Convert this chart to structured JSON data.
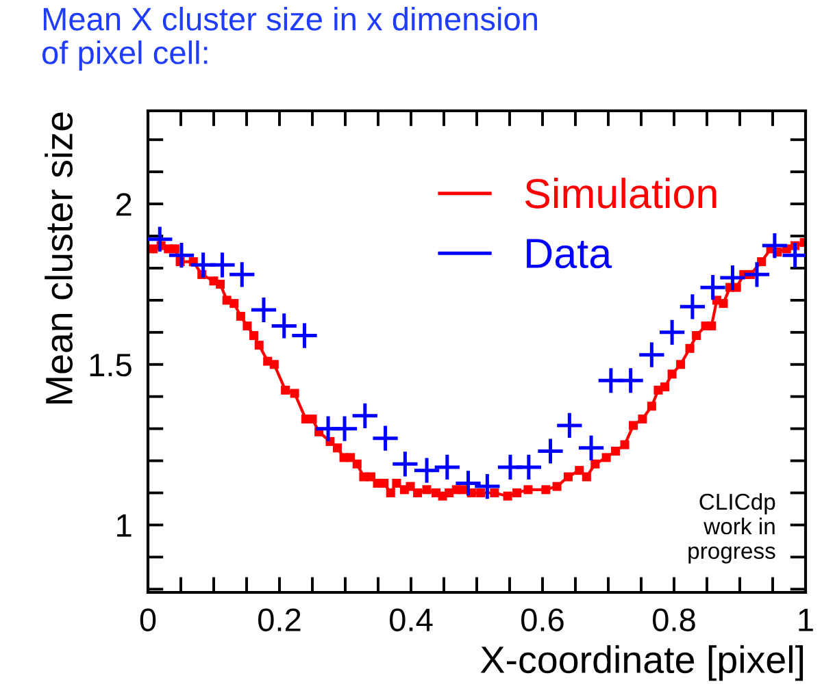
{
  "chart_data": {
    "type": "line",
    "title": "Mean X cluster size in x dimension\nof pixel cell:",
    "xlabel": "X-coordinate [pixel]",
    "ylabel": "Mean cluster size",
    "annotations": [
      "CLICdp\nwork in\nprogress"
    ],
    "xlim": [
      0,
      1
    ],
    "xticks": [
      0,
      {
        "value": 0.05,
        "label": null
      },
      {
        "value": 0.1,
        "label": null
      },
      {
        "value": 0.15,
        "label": null
      },
      0.2,
      {
        "value": 0.25,
        "label": null
      },
      {
        "value": 0.3,
        "label": null
      },
      {
        "value": 0.35,
        "label": null
      },
      0.4,
      {
        "value": 0.45,
        "label": null
      },
      {
        "value": 0.5,
        "label": null
      },
      {
        "value": 0.55,
        "label": null
      },
      0.6,
      {
        "value": 0.65,
        "label": null
      },
      {
        "value": 0.7,
        "label": null
      },
      {
        "value": 0.75,
        "label": null
      },
      0.8,
      {
        "value": 0.85,
        "label": null
      },
      {
        "value": 0.9,
        "label": null
      },
      {
        "value": 0.95,
        "label": null
      },
      1
    ],
    "ylim": [
      0.79,
      2.29
    ],
    "yticks": [
      {
        "value": 0.8,
        "label": null
      },
      {
        "value": 0.9,
        "label": null
      },
      1,
      {
        "value": 1.1,
        "label": null
      },
      {
        "value": 1.2,
        "label": null
      },
      {
        "value": 1.3,
        "label": null
      },
      {
        "value": 1.4,
        "label": null
      },
      1.5,
      {
        "value": 1.6,
        "label": null
      },
      {
        "value": 1.7,
        "label": null
      },
      {
        "value": 1.8,
        "label": null
      },
      {
        "value": 1.9,
        "label": null
      },
      2,
      {
        "value": 2.1,
        "label": null
      },
      {
        "value": 2.2,
        "label": null
      }
    ],
    "grid": false,
    "legend": "top right",
    "series": [
      {
        "name": "Simulation",
        "color": "#ff0000",
        "marker": "square",
        "line_style": "solid",
        "x": [
          0.008,
          0.02,
          0.031,
          0.041,
          0.049,
          0.069,
          0.082,
          0.1,
          0.11,
          0.12,
          0.131,
          0.141,
          0.151,
          0.161,
          0.169,
          0.182,
          0.192,
          0.209,
          0.223,
          0.24,
          0.25,
          0.26,
          0.277,
          0.288,
          0.298,
          0.308,
          0.318,
          0.328,
          0.339,
          0.349,
          0.359,
          0.369,
          0.378,
          0.39,
          0.399,
          0.41,
          0.424,
          0.438,
          0.448,
          0.458,
          0.469,
          0.479,
          0.492,
          0.506,
          0.527,
          0.547,
          0.561,
          0.578,
          0.605,
          0.622,
          0.639,
          0.656,
          0.667,
          0.68,
          0.697,
          0.711,
          0.725,
          0.738,
          0.752,
          0.766,
          0.776,
          0.786,
          0.797,
          0.81,
          0.824,
          0.834,
          0.848,
          0.857,
          0.865,
          0.875,
          0.885,
          0.895,
          0.906,
          0.916,
          0.933,
          0.947,
          0.957,
          0.971,
          0.984,
          0.998
        ],
        "values": [
          1.86,
          1.87,
          1.86,
          1.86,
          1.82,
          1.82,
          1.78,
          1.76,
          1.75,
          1.7,
          1.69,
          1.65,
          1.62,
          1.59,
          1.56,
          1.51,
          1.5,
          1.42,
          1.41,
          1.33,
          1.33,
          1.29,
          1.26,
          1.24,
          1.21,
          1.21,
          1.19,
          1.15,
          1.15,
          1.13,
          1.13,
          1.1,
          1.13,
          1.11,
          1.12,
          1.1,
          1.11,
          1.1,
          1.09,
          1.1,
          1.11,
          1.11,
          1.1,
          1.1,
          1.1,
          1.09,
          1.1,
          1.11,
          1.11,
          1.12,
          1.15,
          1.17,
          1.15,
          1.19,
          1.21,
          1.23,
          1.25,
          1.31,
          1.33,
          1.37,
          1.42,
          1.43,
          1.47,
          1.5,
          1.55,
          1.59,
          1.62,
          1.62,
          1.7,
          1.69,
          1.74,
          1.74,
          1.78,
          1.78,
          1.82,
          1.86,
          1.85,
          1.86,
          1.87,
          1.88
        ]
      },
      {
        "name": "Data",
        "color": "#0000ff",
        "type": "scatter",
        "marker": "cross",
        "x": [
          0.018,
          0.051,
          0.084,
          0.113,
          0.143,
          0.176,
          0.207,
          0.238,
          0.274,
          0.299,
          0.33,
          0.361,
          0.391,
          0.424,
          0.455,
          0.487,
          0.516,
          0.551,
          0.579,
          0.612,
          0.641,
          0.674,
          0.704,
          0.734,
          0.766,
          0.797,
          0.828,
          0.859,
          0.889,
          0.926,
          0.953,
          0.984
        ],
        "values": [
          1.89,
          1.84,
          1.81,
          1.81,
          1.78,
          1.67,
          1.62,
          1.59,
          1.3,
          1.3,
          1.34,
          1.27,
          1.19,
          1.17,
          1.18,
          1.13,
          1.12,
          1.18,
          1.18,
          1.23,
          1.31,
          1.24,
          1.45,
          1.45,
          1.53,
          1.6,
          1.68,
          1.74,
          1.77,
          1.78,
          1.87,
          1.84
        ]
      }
    ]
  }
}
